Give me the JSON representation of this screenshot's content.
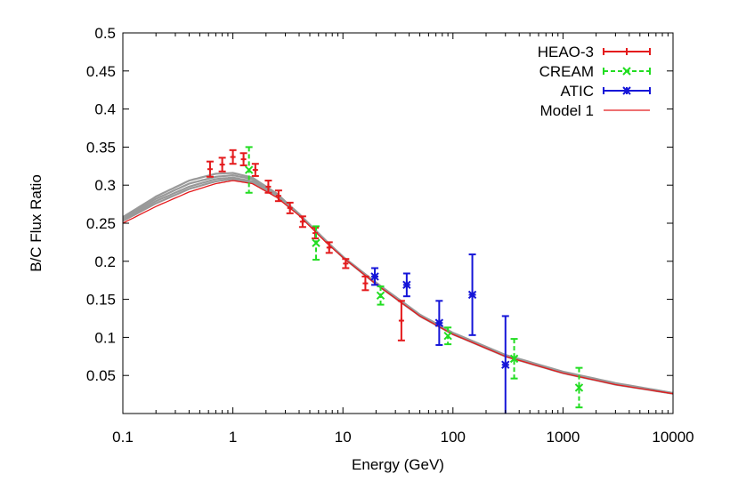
{
  "chart_data": {
    "type": "scatter",
    "xscale": "log",
    "xlim": [
      0.1,
      10000
    ],
    "ylim": [
      0,
      0.5
    ],
    "xlabel": "Energy (GeV)",
    "ylabel": "B/C Flux Ratio",
    "x_ticks": [
      {
        "value": 0.1,
        "label": "0.1"
      },
      {
        "value": 1,
        "label": "1"
      },
      {
        "value": 10,
        "label": "10"
      },
      {
        "value": 100,
        "label": "100"
      },
      {
        "value": 1000,
        "label": "1000"
      },
      {
        "value": 10000,
        "label": "10000"
      }
    ],
    "y_ticks": [
      {
        "value": 0.05,
        "label": "0.05"
      },
      {
        "value": 0.1,
        "label": "0.1"
      },
      {
        "value": 0.15,
        "label": "0.15"
      },
      {
        "value": 0.2,
        "label": "0.2"
      },
      {
        "value": 0.25,
        "label": "0.25"
      },
      {
        "value": 0.3,
        "label": "0.3"
      },
      {
        "value": 0.35,
        "label": "0.35"
      },
      {
        "value": 0.4,
        "label": "0.4"
      },
      {
        "value": 0.45,
        "label": "0.45"
      },
      {
        "value": 0.5,
        "label": "0.5"
      }
    ],
    "legend_position": "top-right",
    "series": [
      {
        "name": "HEAO-3",
        "color": "#e41a1c",
        "marker": "plus",
        "points": [
          {
            "x": 0.62,
            "y": 0.321,
            "err": 0.01
          },
          {
            "x": 0.8,
            "y": 0.327,
            "err": 0.009
          },
          {
            "x": 1.0,
            "y": 0.337,
            "err": 0.009
          },
          {
            "x": 1.25,
            "y": 0.334,
            "err": 0.008
          },
          {
            "x": 1.6,
            "y": 0.32,
            "err": 0.008
          },
          {
            "x": 2.1,
            "y": 0.298,
            "err": 0.008
          },
          {
            "x": 2.6,
            "y": 0.286,
            "err": 0.007
          },
          {
            "x": 3.3,
            "y": 0.27,
            "err": 0.007
          },
          {
            "x": 4.3,
            "y": 0.252,
            "err": 0.007
          },
          {
            "x": 5.6,
            "y": 0.237,
            "err": 0.007
          },
          {
            "x": 7.5,
            "y": 0.218,
            "err": 0.007
          },
          {
            "x": 10.6,
            "y": 0.197,
            "err": 0.006
          },
          {
            "x": 16,
            "y": 0.171,
            "err": 0.009
          },
          {
            "x": 34,
            "y": 0.122,
            "err": 0.026
          }
        ]
      },
      {
        "name": "CREAM",
        "color": "#22dd22",
        "marker": "cross",
        "points": [
          {
            "x": 1.4,
            "y": 0.32,
            "err": 0.03
          },
          {
            "x": 5.7,
            "y": 0.224,
            "err": 0.022
          },
          {
            "x": 22,
            "y": 0.155,
            "err": 0.012
          },
          {
            "x": 90,
            "y": 0.102,
            "err": 0.011
          },
          {
            "x": 360,
            "y": 0.072,
            "err": 0.026
          },
          {
            "x": 1400,
            "y": 0.034,
            "err": 0.026
          }
        ]
      },
      {
        "name": "ATIC",
        "color": "#1515d8",
        "marker": "star",
        "points": [
          {
            "x": 19.5,
            "y": 0.18,
            "err": 0.011
          },
          {
            "x": 38,
            "y": 0.169,
            "err": 0.015
          },
          {
            "x": 75,
            "y": 0.119,
            "err": 0.029
          },
          {
            "x": 150,
            "y": 0.156,
            "err": 0.053
          },
          {
            "x": 300,
            "y": 0.064,
            "err": 0.064
          }
        ]
      },
      {
        "name": "Model 1",
        "color": "#e41a1c",
        "marker": "line",
        "points": [
          {
            "x": 0.1,
            "y": 0.25
          },
          {
            "x": 0.2,
            "y": 0.272
          },
          {
            "x": 0.4,
            "y": 0.291
          },
          {
            "x": 0.7,
            "y": 0.302
          },
          {
            "x": 1.0,
            "y": 0.306
          },
          {
            "x": 1.5,
            "y": 0.302
          },
          {
            "x": 2.5,
            "y": 0.284
          },
          {
            "x": 4,
            "y": 0.26
          },
          {
            "x": 7,
            "y": 0.225
          },
          {
            "x": 10,
            "y": 0.205
          },
          {
            "x": 20,
            "y": 0.17
          },
          {
            "x": 50,
            "y": 0.128
          },
          {
            "x": 100,
            "y": 0.104
          },
          {
            "x": 300,
            "y": 0.075
          },
          {
            "x": 1000,
            "y": 0.053
          },
          {
            "x": 3000,
            "y": 0.038
          },
          {
            "x": 10000,
            "y": 0.026
          }
        ]
      }
    ],
    "model_band": {
      "color": "#999999",
      "curves": [
        [
          0.258,
          0.285,
          0.306,
          0.315,
          0.316,
          0.31,
          0.289,
          0.262,
          0.226,
          0.205,
          0.17,
          0.128,
          0.104,
          0.075,
          0.053,
          0.038,
          0.026
        ],
        [
          0.256,
          0.282,
          0.302,
          0.311,
          0.313,
          0.308,
          0.288,
          0.262,
          0.227,
          0.206,
          0.171,
          0.129,
          0.105,
          0.076,
          0.054,
          0.039,
          0.027
        ],
        [
          0.254,
          0.279,
          0.298,
          0.308,
          0.31,
          0.305,
          0.287,
          0.262,
          0.227,
          0.206,
          0.172,
          0.13,
          0.106,
          0.077,
          0.055,
          0.04,
          0.027
        ],
        [
          0.253,
          0.276,
          0.295,
          0.305,
          0.308,
          0.303,
          0.286,
          0.261,
          0.226,
          0.206,
          0.171,
          0.129,
          0.105,
          0.076,
          0.054,
          0.039,
          0.026
        ]
      ]
    }
  }
}
